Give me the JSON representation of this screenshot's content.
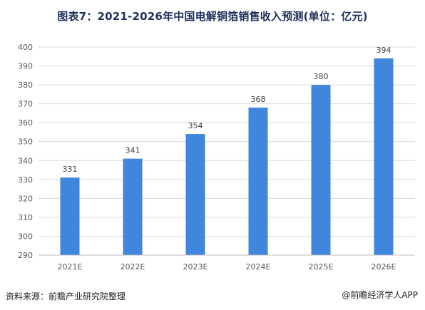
{
  "title": "图表7：2021-2026年中国电解铜箔销售收入预测(单位：亿元)",
  "footer": {
    "source": "资料来源：前瞻产业研究院整理",
    "credit": "@前瞻经济学人APP"
  },
  "colors": {
    "bar": "#3f86dc",
    "grid": "#d9d9d9",
    "axis_text": "#595959",
    "label_text": "#404040",
    "title": "#1f2f5a"
  },
  "chart_data": {
    "type": "bar",
    "title": "图表7：2021-2026年中国电解铜箔销售收入预测(单位：亿元)",
    "categories": [
      "2021E",
      "2022E",
      "2023E",
      "2024E",
      "2025E",
      "2026E"
    ],
    "values": [
      331,
      341,
      354,
      368,
      380,
      394
    ],
    "data_labels": [
      "331",
      "341",
      "354",
      "368",
      "380",
      "394"
    ],
    "ylim": [
      290,
      400
    ],
    "yticks": [
      290,
      300,
      310,
      320,
      330,
      340,
      350,
      360,
      370,
      380,
      390,
      400
    ],
    "ytick_labels": [
      "290",
      "300",
      "310",
      "320",
      "330",
      "340",
      "350",
      "360",
      "370",
      "380",
      "390",
      "400"
    ],
    "xlabel": "",
    "ylabel": "",
    "grid": true,
    "legend": "none"
  }
}
